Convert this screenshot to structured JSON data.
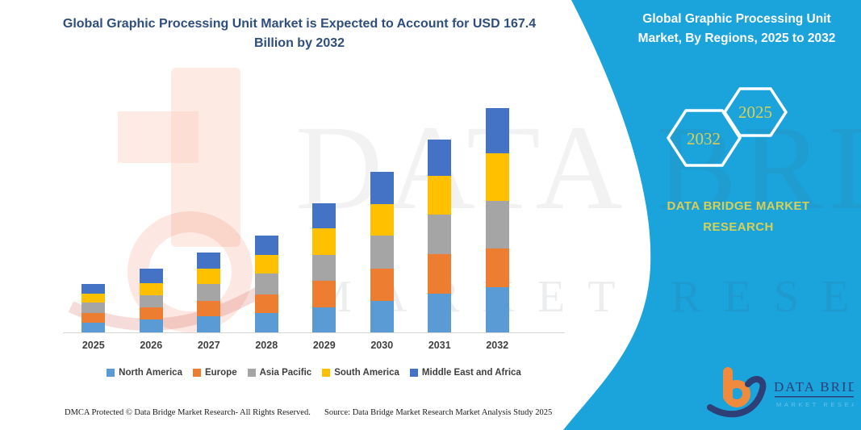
{
  "header": {
    "title_line1": "Global Graphic Processing Unit Market is Expected to Account for USD 167.4",
    "title_line2": "Billion by 2032"
  },
  "right_panel": {
    "panel_color": "#1BA3DC",
    "accent_yellow": "#D8D054",
    "title_line1": "Global Graphic Processing Unit",
    "title_line2": "Market, By Regions, 2025 to 2032",
    "hexagon_left_year": "2032",
    "hexagon_right_year": "2025",
    "brand_line1": "DATA BRIDGE MARKET",
    "brand_line2": "RESEARCH"
  },
  "chart_data": {
    "type": "bar",
    "stacked": true,
    "unit": "USD Billion",
    "categories": [
      "2025",
      "2026",
      "2027",
      "2028",
      "2029",
      "2030",
      "2031",
      "2032"
    ],
    "series": [
      {
        "name": "North America",
        "color": "#5B9BD5",
        "values": [
          7.2,
          9.8,
          11.8,
          14.3,
          18.9,
          23.8,
          28.7,
          33.5
        ]
      },
      {
        "name": "Europe",
        "color": "#ED7D31",
        "values": [
          7.1,
          8.8,
          11.7,
          14.2,
          19.5,
          24.0,
          29.7,
          29.3
        ]
      },
      {
        "name": "Asia Pacific",
        "color": "#A5A5A5",
        "values": [
          7.7,
          9.3,
          12.7,
          15.4,
          19.5,
          24.3,
          29.7,
          35.6
        ]
      },
      {
        "name": "South America",
        "color": "#FFC000",
        "values": [
          6.6,
          8.9,
          11.3,
          14.0,
          19.5,
          23.9,
          29.0,
          35.1
        ]
      },
      {
        "name": "Middle East and Africa",
        "color": "#4472C4",
        "values": [
          7.7,
          10.9,
          12.3,
          14.6,
          18.7,
          23.7,
          26.7,
          33.9
        ]
      }
    ],
    "totals": [
      36.3,
      47.7,
      59.8,
      72.5,
      96.1,
      119.7,
      143.8,
      167.4
    ],
    "ylim": [
      0,
      170
    ],
    "grid": false,
    "legend_position": "bottom"
  },
  "footer": {
    "dmca": "DMCA Protected © Data Bridge Market Research-  All Rights Reserved.",
    "source": "Source: Data Bridge Market Research  Market Analysis Study 2025"
  },
  "logo": {
    "name": "DATA BRIDGE",
    "subtitle": "MARKET RESEARCH"
  },
  "watermark": {
    "line1": "DATA BRIDGE",
    "line2": "MARKET RESEARCH"
  }
}
